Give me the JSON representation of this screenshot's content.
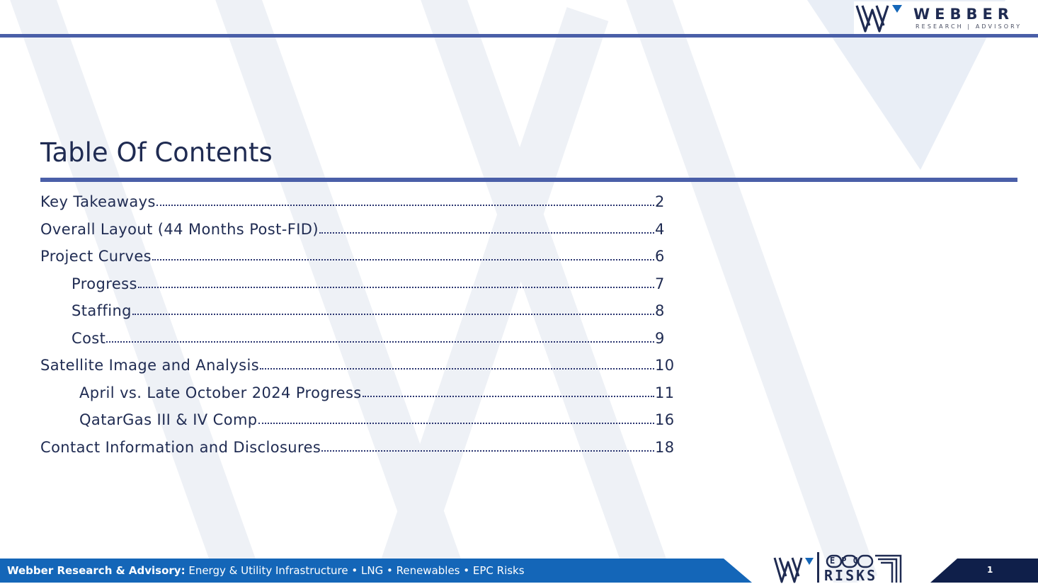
{
  "brand": {
    "name": "WEBBER",
    "tagline": "RESEARCH | ADVISORY",
    "colors": {
      "navy": "#1f2b52",
      "accent": "#4a5fa8",
      "footer_blue": "#1466b8",
      "footer_dark": "#0f1f4a"
    }
  },
  "title": "Table Of Contents",
  "toc": [
    {
      "label": "Key Takeaways",
      "page": "2",
      "level": 0
    },
    {
      "label": "Overall Layout (44 Months Post-FID)",
      "page": "4",
      "level": 0
    },
    {
      "label": "Project Curves",
      "page": "6",
      "level": 0
    },
    {
      "label": "Progress",
      "page": "7",
      "level": 1
    },
    {
      "label": "Staffing",
      "page": "8",
      "level": 1
    },
    {
      "label": "Cost",
      "page": "9",
      "level": 1
    },
    {
      "label": "Satellite Image and Analysis",
      "page": "10",
      "level": 0
    },
    {
      "label": "April vs. Late October 2024 Progress",
      "page": "11",
      "level": 2
    },
    {
      "label": "QatarGas III & IV Comp",
      "page": "16",
      "level": 2
    },
    {
      "label": "Contact Information and Disclosures",
      "page": "18",
      "level": 0
    }
  ],
  "footer": {
    "company": "Webber Research & Advisory:",
    "topics": " Energy & Utility Infrastructure • LNG • Renewables • EPC Risks",
    "page_number": "1",
    "epc_logo": {
      "top": "EPC",
      "bottom": "RISKS"
    }
  }
}
